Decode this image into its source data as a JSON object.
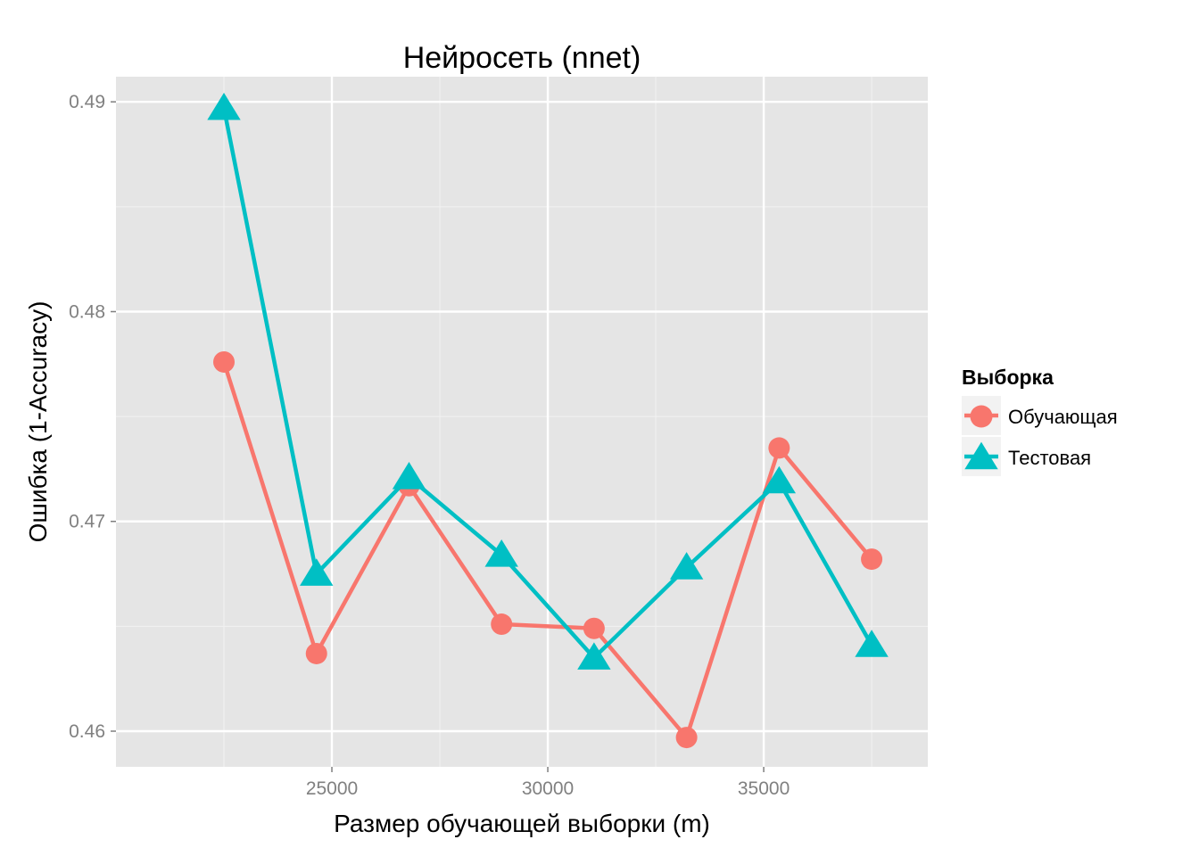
{
  "chart_data": {
    "type": "line",
    "title": "Нейросеть (nnet)",
    "xlabel": "Размер обучающей выборки (m)",
    "ylabel": "Ошибка (1-Accuracy)",
    "x": [
      22500,
      24643,
      26786,
      28929,
      31071,
      33214,
      35357,
      37500
    ],
    "xlim": [
      20000,
      38800
    ],
    "ylim": [
      0.4583,
      0.4912
    ],
    "x_ticks": [
      25000,
      30000,
      35000
    ],
    "y_ticks": [
      0.46,
      0.47,
      0.48,
      0.49
    ],
    "x_tick_labels": [
      "25000",
      "30000",
      "35000"
    ],
    "y_tick_labels": [
      "0.46",
      "0.47",
      "0.48",
      "0.49"
    ],
    "grid": true,
    "legend": {
      "title": "Выборка",
      "position": "right"
    },
    "series": [
      {
        "name": "Обучающая",
        "color": "#F8766D",
        "marker": "circle",
        "values": [
          0.4776,
          0.4637,
          0.4717,
          0.4651,
          0.4649,
          0.4597,
          0.4735,
          0.4682
        ]
      },
      {
        "name": "Тестовая",
        "color": "#00BFC4",
        "marker": "triangle",
        "values": [
          0.4897,
          0.4675,
          0.4721,
          0.4684,
          0.4635,
          0.4678,
          0.4719,
          0.4641
        ]
      }
    ]
  }
}
